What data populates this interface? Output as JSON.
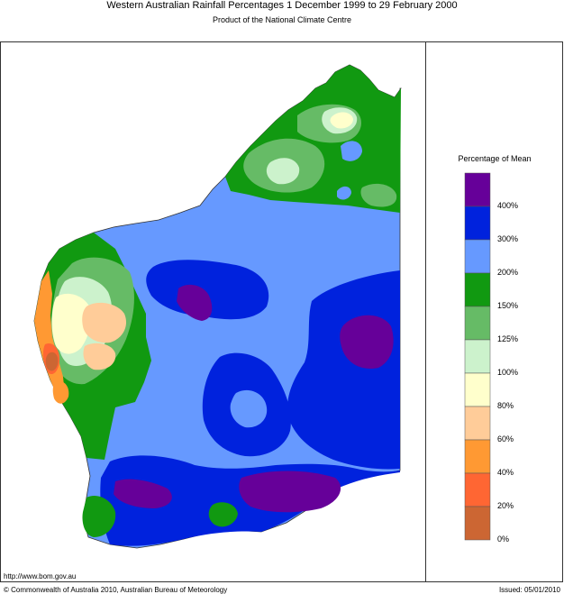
{
  "title": "Western Australian Rainfall Percentages 1 December 1999 to 29 February 2000",
  "subtitle": "Product of the National Climate Centre",
  "legend": {
    "title": "Percentage of Mean",
    "bins": [
      {
        "label": "400%",
        "color": "#660099"
      },
      {
        "label": "300%",
        "color": "#0022dd"
      },
      {
        "label": "200%",
        "color": "#6699ff"
      },
      {
        "label": "150%",
        "color": "#119911"
      },
      {
        "label": "125%",
        "color": "#66bb66"
      },
      {
        "label": "100%",
        "color": "#ccf2cc"
      },
      {
        "label": "80%",
        "color": "#ffffcc"
      },
      {
        "label": "60%",
        "color": "#ffcc99"
      },
      {
        "label": "40%",
        "color": "#ff9933"
      },
      {
        "label": "20%",
        "color": "#ff6633"
      },
      {
        "label": "0%",
        "color": "#cc6633"
      }
    ]
  },
  "footer": {
    "url": "http://www.bom.gov.au",
    "copyright": "© Commonwealth of Australia 2010, Australian Bureau of Meteorology",
    "issued": "Issued: 05/01/2010"
  }
}
